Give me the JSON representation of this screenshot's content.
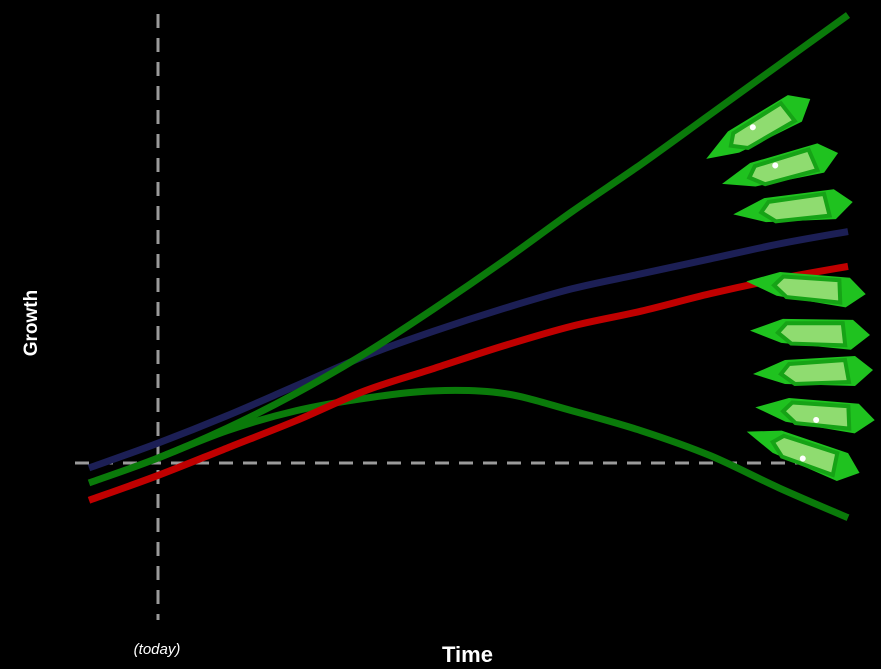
{
  "chart_data": {
    "type": "line",
    "title": "",
    "xlabel": "Time",
    "ylabel": "Growth",
    "annotations": [
      {
        "text": "(today)"
      }
    ],
    "reference_lines": [
      {
        "orientation": "vertical",
        "style": "dashed"
      },
      {
        "orientation": "horizontal",
        "style": "dashed"
      }
    ],
    "grid": false,
    "series": [
      {
        "color": "#0a7a0a",
        "values": [
          [
            -0.1,
            -0.08
          ],
          [
            0,
            0.02
          ],
          [
            0.1,
            0.14
          ],
          [
            0.2,
            0.28
          ],
          [
            0.3,
            0.44
          ],
          [
            0.4,
            0.62
          ],
          [
            0.5,
            0.81
          ],
          [
            0.6,
            1.01
          ],
          [
            0.7,
            1.2
          ],
          [
            0.8,
            1.4
          ],
          [
            0.9,
            1.6
          ],
          [
            1,
            1.8
          ]
        ]
      },
      {
        "color": "#1c1f55",
        "values": [
          [
            -0.1,
            -0.02
          ],
          [
            0,
            0.08
          ],
          [
            0.1,
            0.19
          ],
          [
            0.2,
            0.31
          ],
          [
            0.3,
            0.43
          ],
          [
            0.4,
            0.53
          ],
          [
            0.5,
            0.62
          ],
          [
            0.6,
            0.7
          ],
          [
            0.7,
            0.76
          ],
          [
            0.8,
            0.82
          ],
          [
            0.9,
            0.88
          ],
          [
            1,
            0.93
          ]
        ]
      },
      {
        "color": "#c00000",
        "values": [
          [
            -0.1,
            -0.15
          ],
          [
            0,
            -0.05
          ],
          [
            0.1,
            0.06
          ],
          [
            0.2,
            0.17
          ],
          [
            0.3,
            0.29
          ],
          [
            0.4,
            0.38
          ],
          [
            0.5,
            0.47
          ],
          [
            0.6,
            0.55
          ],
          [
            0.7,
            0.61
          ],
          [
            0.8,
            0.68
          ],
          [
            0.9,
            0.74
          ],
          [
            1,
            0.79
          ]
        ]
      },
      {
        "color": "#0a7a0a",
        "values": [
          [
            0,
            0.02
          ],
          [
            0.1,
            0.13
          ],
          [
            0.2,
            0.21
          ],
          [
            0.3,
            0.26
          ],
          [
            0.4,
            0.29
          ],
          [
            0.5,
            0.28
          ],
          [
            0.6,
            0.21
          ],
          [
            0.7,
            0.13
          ],
          [
            0.8,
            0.03
          ],
          [
            0.9,
            -0.1
          ],
          [
            1,
            -0.22
          ]
        ]
      }
    ]
  }
}
